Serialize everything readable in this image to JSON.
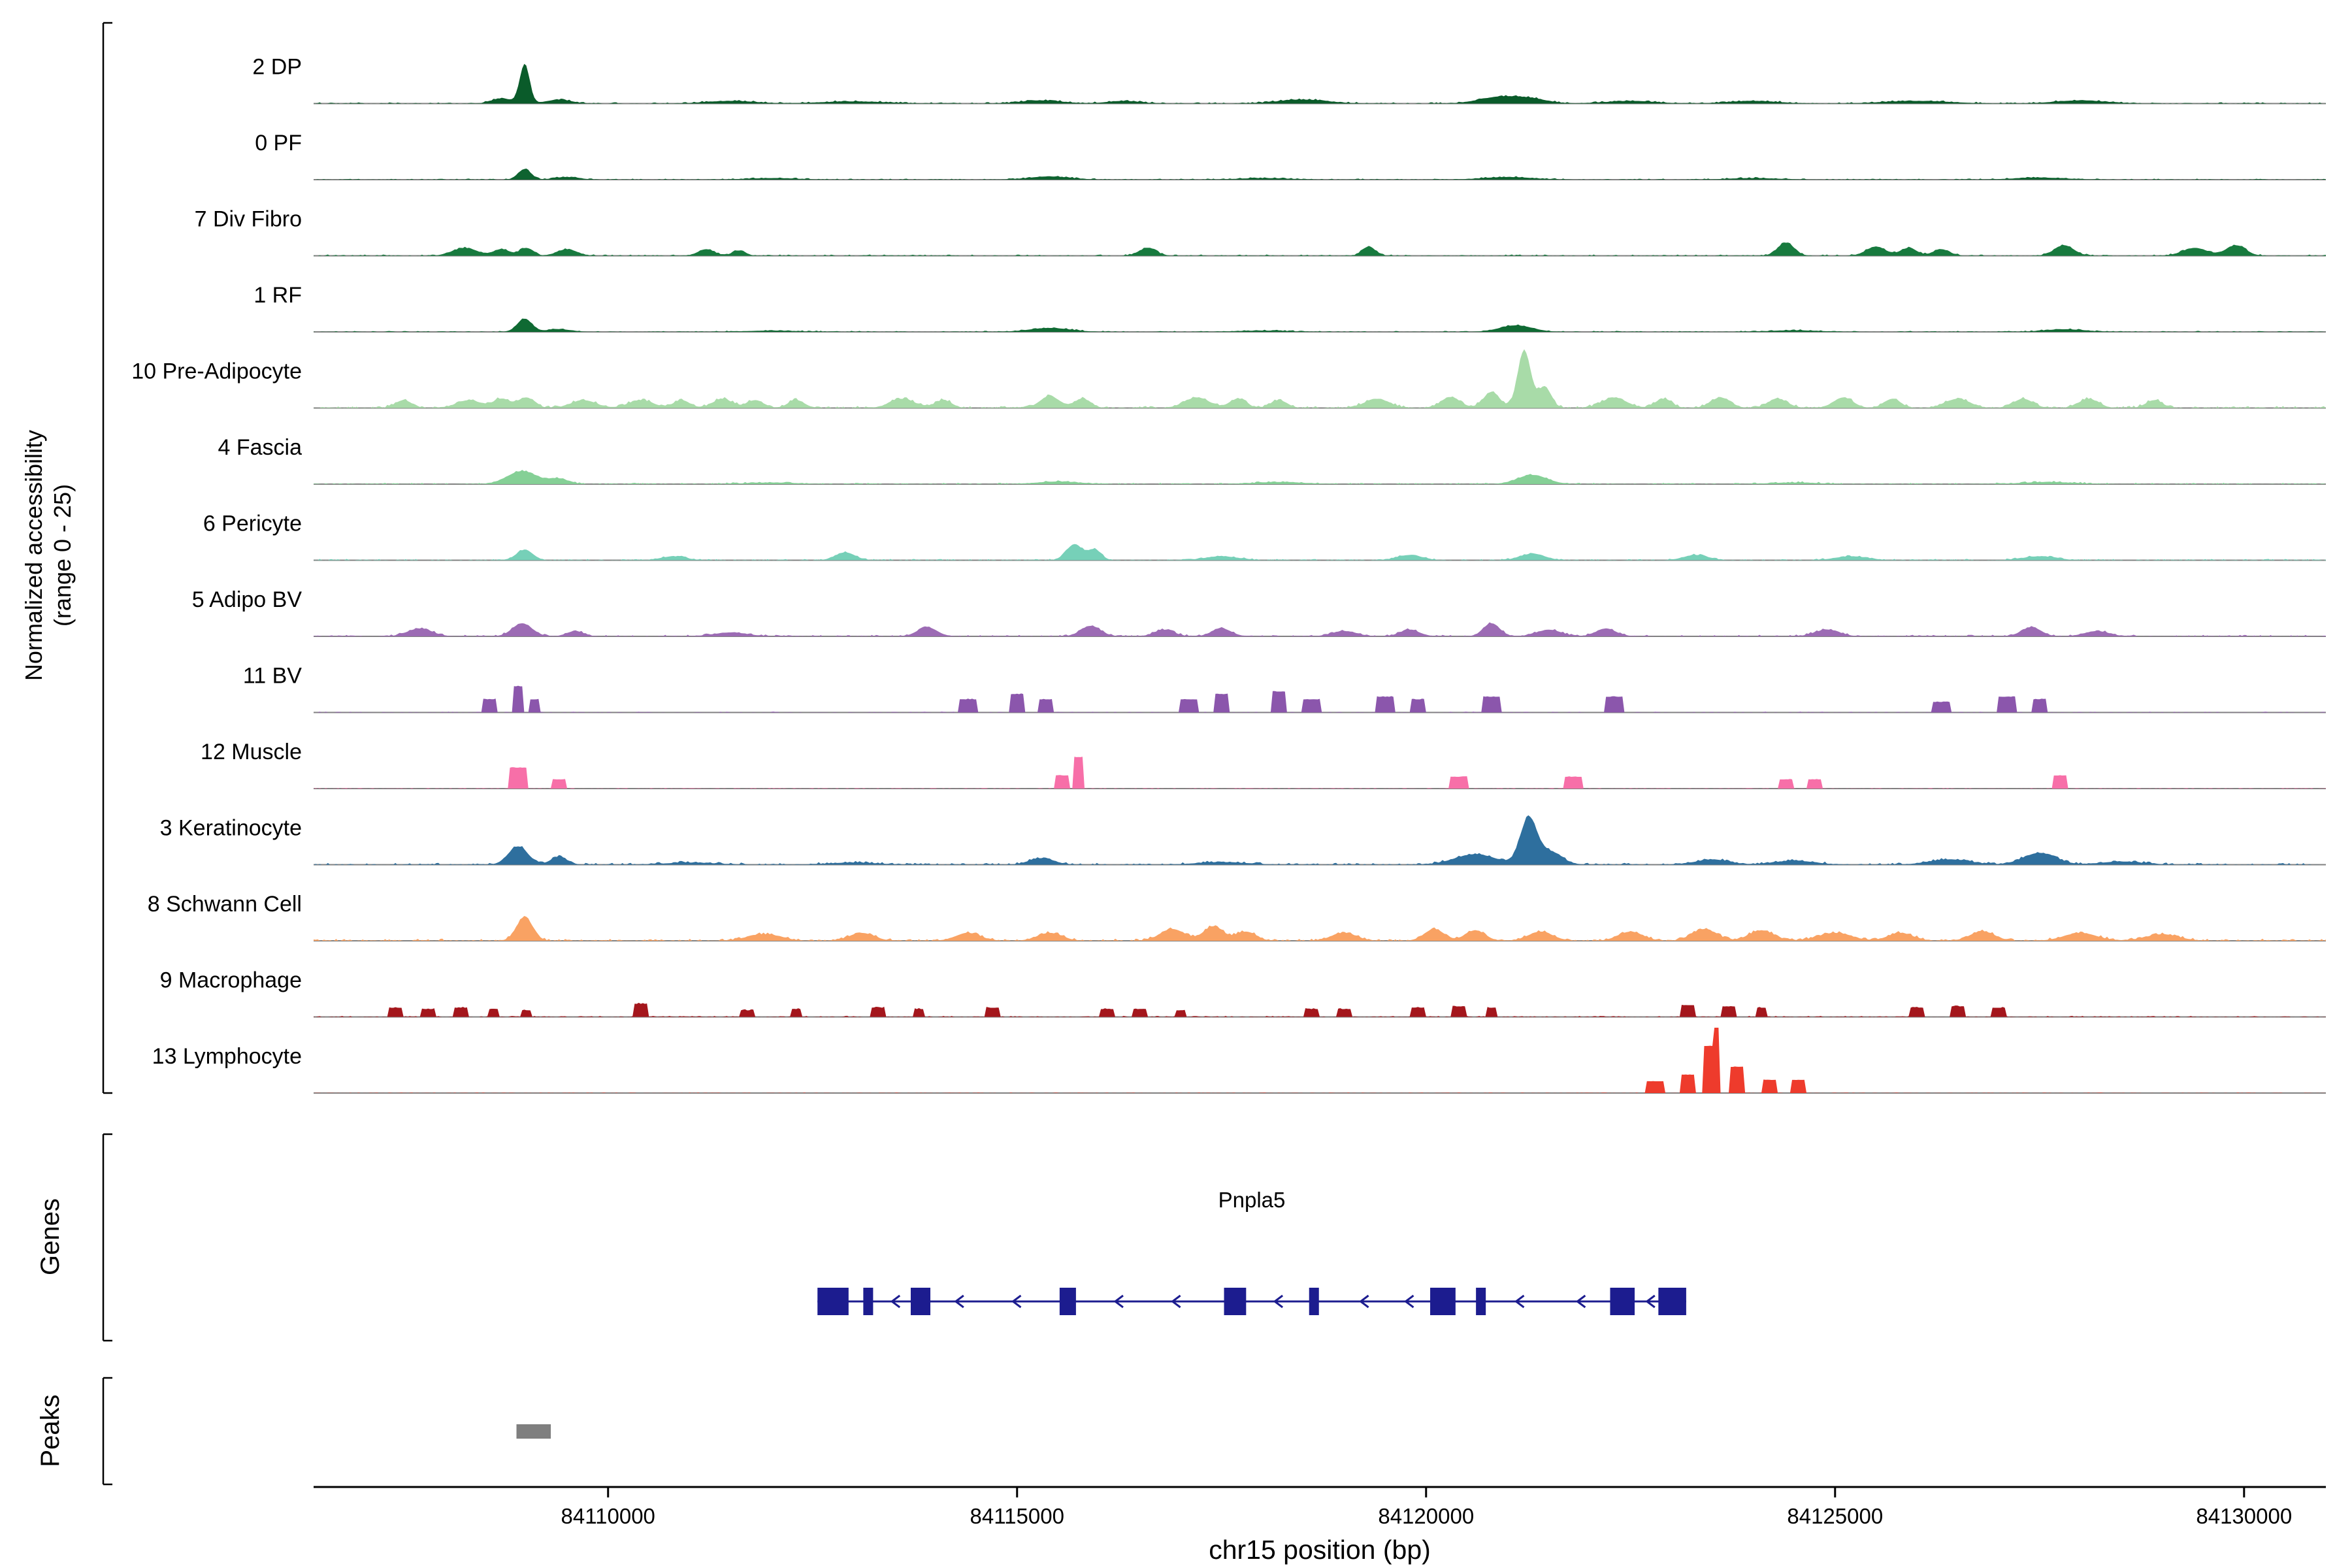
{
  "figure": {
    "y_axis_label_line1": "Normalized accessibility",
    "y_axis_label_line2": "(range 0 - 25)",
    "genes_section_label": "Genes",
    "peaks_section_label": "Peaks",
    "x_axis_title": "chr15 position (bp)",
    "gene_name": "Pnpla5"
  },
  "chart_data": {
    "type": "area",
    "title": "",
    "xlabel": "chr15 position (bp)",
    "ylabel": "Normalized accessibility (range 0 - 25)",
    "x_range": [
      84106400,
      84131000
    ],
    "y_range_per_track": [
      0,
      25
    ],
    "x_ticks": [
      84110000,
      84115000,
      84120000,
      84125000,
      84130000
    ],
    "baseline_color": "#808080",
    "tracks": [
      {
        "label": "2 DP",
        "color": "#0A5B2A",
        "style": "gauss",
        "noise": 0.5,
        "peaks": [
          [
            84108980,
            60,
            15
          ],
          [
            84108700,
            120,
            2
          ],
          [
            84109400,
            150,
            1.5
          ],
          [
            84111500,
            300,
            1
          ],
          [
            84113000,
            400,
            0.8
          ],
          [
            84115300,
            250,
            1.2
          ],
          [
            84116300,
            200,
            1
          ],
          [
            84118500,
            300,
            1.5
          ],
          [
            84120900,
            250,
            2.5
          ],
          [
            84121300,
            200,
            1.5
          ],
          [
            84122500,
            300,
            1
          ],
          [
            84124000,
            300,
            1
          ],
          [
            84126000,
            400,
            1
          ],
          [
            84128000,
            300,
            1.2
          ]
        ]
      },
      {
        "label": "0 PF",
        "color": "#0E6330",
        "style": "gauss",
        "noise": 0.4,
        "peaks": [
          [
            84108980,
            80,
            4
          ],
          [
            84109500,
            150,
            1
          ],
          [
            84112000,
            300,
            0.6
          ],
          [
            84115400,
            250,
            1.2
          ],
          [
            84118000,
            300,
            0.6
          ],
          [
            84121000,
            300,
            1
          ],
          [
            84124000,
            300,
            0.6
          ],
          [
            84127500,
            300,
            0.8
          ]
        ]
      },
      {
        "label": "7 Div Fibro",
        "color": "#177A3E",
        "style": "gauss",
        "noise": 0.5,
        "peaks": [
          [
            84108250,
            150,
            3
          ],
          [
            84108700,
            100,
            2.5
          ],
          [
            84109000,
            80,
            3
          ],
          [
            84109500,
            120,
            2.5
          ],
          [
            84111200,
            100,
            2.5
          ],
          [
            84111600,
            80,
            2
          ],
          [
            84116600,
            100,
            3
          ],
          [
            84119300,
            80,
            3.5
          ],
          [
            84124400,
            100,
            5
          ],
          [
            84125500,
            120,
            3.5
          ],
          [
            84125900,
            100,
            3
          ],
          [
            84126300,
            100,
            2.5
          ],
          [
            84127800,
            120,
            4
          ],
          [
            84129400,
            150,
            3
          ],
          [
            84129900,
            120,
            4
          ]
        ]
      },
      {
        "label": "1 RF",
        "color": "#0F6A33",
        "style": "gauss",
        "noise": 0.4,
        "peaks": [
          [
            84108980,
            90,
            5
          ],
          [
            84109400,
            150,
            1
          ],
          [
            84112000,
            300,
            0.5
          ],
          [
            84115400,
            250,
            1.5
          ],
          [
            84118000,
            300,
            0.5
          ],
          [
            84121100,
            200,
            2.5
          ],
          [
            84124500,
            300,
            0.6
          ],
          [
            84127800,
            250,
            1
          ]
        ]
      },
      {
        "label": "10 Pre-Adipocyte",
        "color": "#A8DBA8",
        "style": "gauss",
        "noise": 0.8,
        "peaks": [
          [
            84107500,
            100,
            3
          ],
          [
            84108300,
            150,
            3
          ],
          [
            84108700,
            100,
            3.5
          ],
          [
            84109000,
            100,
            4
          ],
          [
            84109700,
            150,
            3
          ],
          [
            84110400,
            150,
            3
          ],
          [
            84110900,
            100,
            3
          ],
          [
            84111400,
            120,
            3.5
          ],
          [
            84111800,
            100,
            3
          ],
          [
            84112300,
            100,
            3
          ],
          [
            84113600,
            150,
            3.5
          ],
          [
            84114100,
            100,
            3
          ],
          [
            84115400,
            120,
            4.5
          ],
          [
            84115800,
            100,
            3.5
          ],
          [
            84117200,
            150,
            4
          ],
          [
            84117700,
            100,
            3.5
          ],
          [
            84118200,
            100,
            3
          ],
          [
            84119400,
            150,
            3.5
          ],
          [
            84120300,
            120,
            4
          ],
          [
            84120800,
            100,
            6
          ],
          [
            84121200,
            80,
            22
          ],
          [
            84121450,
            80,
            8
          ],
          [
            84122300,
            150,
            4
          ],
          [
            84122900,
            100,
            3.5
          ],
          [
            84123600,
            120,
            4
          ],
          [
            84124300,
            120,
            3.5
          ],
          [
            84125100,
            120,
            4
          ],
          [
            84125700,
            100,
            3.5
          ],
          [
            84126500,
            150,
            3.5
          ],
          [
            84127300,
            120,
            3.5
          ],
          [
            84128100,
            120,
            3.5
          ],
          [
            84128900,
            100,
            3
          ]
        ]
      },
      {
        "label": "4 Fascia",
        "color": "#85D096",
        "style": "gauss",
        "noise": 0.5,
        "peaks": [
          [
            84108950,
            180,
            5
          ],
          [
            84109400,
            120,
            2
          ],
          [
            84112000,
            300,
            0.6
          ],
          [
            84115500,
            250,
            1
          ],
          [
            84118200,
            300,
            0.8
          ],
          [
            84121300,
            180,
            3.5
          ],
          [
            84124500,
            300,
            0.6
          ],
          [
            84127600,
            300,
            0.8
          ]
        ]
      },
      {
        "label": "6 Pericyte",
        "color": "#76D0B8",
        "style": "gauss",
        "noise": 0.5,
        "peaks": [
          [
            84108980,
            100,
            4
          ],
          [
            84110800,
            150,
            1.5
          ],
          [
            84112900,
            120,
            3
          ],
          [
            84115700,
            100,
            6
          ],
          [
            84115950,
            80,
            4
          ],
          [
            84117500,
            200,
            1.5
          ],
          [
            84119800,
            150,
            2
          ],
          [
            84121300,
            150,
            2.5
          ],
          [
            84123300,
            150,
            2
          ],
          [
            84125200,
            200,
            1.5
          ],
          [
            84127500,
            200,
            1.5
          ]
        ]
      },
      {
        "label": "5 Adipo BV",
        "color": "#9C6BB4",
        "style": "gauss",
        "noise": 0.6,
        "peaks": [
          [
            84107700,
            150,
            3
          ],
          [
            84108950,
            120,
            5
          ],
          [
            84109600,
            100,
            2
          ],
          [
            84111500,
            200,
            1.5
          ],
          [
            84113900,
            120,
            3.5
          ],
          [
            84115900,
            120,
            4
          ],
          [
            84116800,
            120,
            2.5
          ],
          [
            84117500,
            120,
            3
          ],
          [
            84119000,
            150,
            2
          ],
          [
            84119800,
            120,
            2.5
          ],
          [
            84120800,
            100,
            5
          ],
          [
            84121500,
            150,
            2.5
          ],
          [
            84122200,
            120,
            3
          ],
          [
            84124900,
            150,
            2.5
          ],
          [
            84127400,
            120,
            3.5
          ],
          [
            84128200,
            150,
            2
          ]
        ]
      },
      {
        "label": "11 BV",
        "color": "#8B56AC",
        "style": "block",
        "noise": 0.3,
        "peaks": [
          [
            84108550,
            80,
            5
          ],
          [
            84108900,
            70,
            10
          ],
          [
            84109100,
            60,
            5
          ],
          [
            84114400,
            100,
            5
          ],
          [
            84115000,
            80,
            7
          ],
          [
            84115350,
            80,
            5
          ],
          [
            84117100,
            100,
            5
          ],
          [
            84117500,
            80,
            7
          ],
          [
            84118200,
            80,
            8
          ],
          [
            84118600,
            100,
            5
          ],
          [
            84119500,
            100,
            6
          ],
          [
            84119900,
            80,
            5
          ],
          [
            84120800,
            100,
            6
          ],
          [
            84122300,
            100,
            6
          ],
          [
            84126300,
            100,
            4
          ],
          [
            84127100,
            100,
            6
          ],
          [
            84127500,
            80,
            5
          ]
        ]
      },
      {
        "label": "12 Muscle",
        "color": "#F76FA8",
        "style": "block",
        "noise": 0.25,
        "peaks": [
          [
            84108900,
            120,
            8
          ],
          [
            84109400,
            80,
            3.5
          ],
          [
            84115550,
            80,
            5
          ],
          [
            84115750,
            70,
            12
          ],
          [
            84120400,
            100,
            4.5
          ],
          [
            84121800,
            100,
            4.5
          ],
          [
            84124400,
            80,
            3.5
          ],
          [
            84124750,
            80,
            3.5
          ],
          [
            84127750,
            90,
            5
          ]
        ]
      },
      {
        "label": "3 Keratinocyte",
        "color": "#2E6F9E",
        "style": "gauss",
        "noise": 0.7,
        "peaks": [
          [
            84108900,
            120,
            7
          ],
          [
            84109400,
            100,
            3
          ],
          [
            84111000,
            300,
            0.8
          ],
          [
            84113000,
            300,
            0.8
          ],
          [
            84115300,
            150,
            2.5
          ],
          [
            84117500,
            300,
            1
          ],
          [
            84120600,
            250,
            4
          ],
          [
            84121250,
            100,
            17
          ],
          [
            84121500,
            150,
            5
          ],
          [
            84123500,
            200,
            2
          ],
          [
            84124500,
            250,
            1.5
          ],
          [
            84126400,
            250,
            2
          ],
          [
            84127500,
            200,
            4.5
          ],
          [
            84128500,
            250,
            1.2
          ]
        ]
      },
      {
        "label": "8 Schwann Cell",
        "color": "#F9A263",
        "style": "gauss",
        "noise": 0.8,
        "peaks": [
          [
            84108980,
            100,
            9
          ],
          [
            84111900,
            200,
            2.5
          ],
          [
            84113100,
            150,
            3
          ],
          [
            84114400,
            150,
            3
          ],
          [
            84115400,
            150,
            3
          ],
          [
            84116900,
            150,
            4.5
          ],
          [
            84117400,
            120,
            5.5
          ],
          [
            84117800,
            120,
            3.5
          ],
          [
            84119000,
            150,
            3
          ],
          [
            84120100,
            120,
            4.5
          ],
          [
            84120600,
            120,
            4
          ],
          [
            84121400,
            150,
            3.5
          ],
          [
            84122500,
            150,
            3.5
          ],
          [
            84123400,
            150,
            4.5
          ],
          [
            84124100,
            150,
            4
          ],
          [
            84125000,
            200,
            3
          ],
          [
            84125800,
            150,
            3
          ],
          [
            84126800,
            150,
            3.5
          ],
          [
            84128000,
            200,
            3
          ],
          [
            84129000,
            200,
            2.5
          ]
        ]
      },
      {
        "label": "9 Macrophage",
        "color": "#A4161C",
        "style": "block",
        "noise": 0.4,
        "peaks": [
          [
            84107400,
            80,
            3.5
          ],
          [
            84107800,
            80,
            3
          ],
          [
            84108200,
            80,
            3.5
          ],
          [
            84108600,
            70,
            3
          ],
          [
            84109000,
            70,
            2.5
          ],
          [
            84110400,
            80,
            5
          ],
          [
            84111700,
            80,
            2.5
          ],
          [
            84112300,
            70,
            3
          ],
          [
            84113300,
            80,
            3.5
          ],
          [
            84113800,
            70,
            3
          ],
          [
            84114700,
            80,
            3.5
          ],
          [
            84116100,
            80,
            3
          ],
          [
            84116500,
            80,
            3
          ],
          [
            84117000,
            70,
            2.5
          ],
          [
            84118600,
            80,
            3
          ],
          [
            84119000,
            80,
            3
          ],
          [
            84119900,
            80,
            3.5
          ],
          [
            84120400,
            80,
            4
          ],
          [
            84120800,
            70,
            3.5
          ],
          [
            84123200,
            80,
            4.5
          ],
          [
            84123700,
            80,
            4
          ],
          [
            84124100,
            70,
            3.5
          ],
          [
            84126000,
            80,
            3.5
          ],
          [
            84126500,
            80,
            4
          ],
          [
            84127000,
            80,
            3.5
          ]
        ]
      },
      {
        "label": "13 Lymphocyte",
        "color": "#EE3B2C",
        "style": "block",
        "noise": 0.15,
        "peaks": [
          [
            84122800,
            100,
            4.5
          ],
          [
            84123200,
            90,
            7
          ],
          [
            84123450,
            70,
            18
          ],
          [
            84123550,
            40,
            25
          ],
          [
            84123800,
            80,
            10
          ],
          [
            84124200,
            90,
            5
          ],
          [
            84124550,
            80,
            5
          ]
        ]
      }
    ],
    "gene": {
      "name": "Pnpla5",
      "strand": "-",
      "start": 84112560,
      "end": 84123180,
      "color": "#1C1C8F",
      "exons": [
        [
          84112560,
          84112940
        ],
        [
          84113120,
          84113240
        ],
        [
          84113700,
          84113940
        ],
        [
          84115520,
          84115720
        ],
        [
          84117530,
          84117800
        ],
        [
          84118570,
          84118690
        ],
        [
          84120050,
          84120360
        ],
        [
          84120610,
          84120730
        ],
        [
          84122250,
          84122550
        ],
        [
          84122840,
          84123180
        ]
      ],
      "arrows": [
        84113470,
        84114250,
        84114950,
        84116200,
        84116900,
        84118150,
        84119200,
        84119750,
        84121100,
        84121850,
        84122700
      ]
    },
    "peaks_track": {
      "color": "#7F7F7F",
      "regions": [
        [
          84108880,
          84109300
        ]
      ]
    }
  }
}
